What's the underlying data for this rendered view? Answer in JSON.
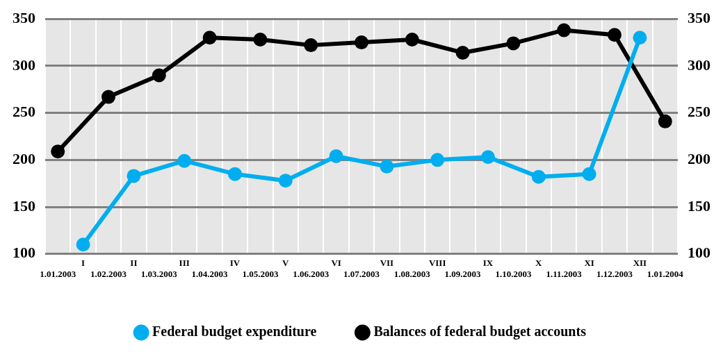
{
  "chart_data": {
    "type": "line",
    "categories": [
      "1.01.2003",
      "I",
      "1.02.2003",
      "II",
      "1.03.2003",
      "III",
      "1.04.2003",
      "IV",
      "1.05.2003",
      "V",
      "1.06.2003",
      "VI",
      "1.07.2003",
      "VII",
      "1.08.2003",
      "VIII",
      "1.09.2003",
      "IX",
      "1.10.2003",
      "X",
      "1.11.2003",
      "XI",
      "1.12.2003",
      "XII",
      "1.01.2004"
    ],
    "series": [
      {
        "name": "Federal budget expenditure",
        "color": "#00aeef",
        "x": [
          "I",
          "II",
          "III",
          "IV",
          "V",
          "VI",
          "VII",
          "VIII",
          "IX",
          "X",
          "XI",
          "XII"
        ],
        "values": [
          110,
          183,
          199,
          185,
          178,
          204,
          193,
          200,
          203,
          182,
          185,
          330
        ]
      },
      {
        "name": "Balances of federal budget accounts",
        "color": "#000000",
        "x": [
          "1.01.2003",
          "1.02.2003",
          "1.03.2003",
          "1.04.2003",
          "1.05.2003",
          "1.06.2003",
          "1.07.2003",
          "1.08.2003",
          "1.09.2003",
          "1.10.2003",
          "1.11.2003",
          "1.12.2003",
          "1.01.2004"
        ],
        "values": [
          209,
          267,
          290,
          330,
          328,
          322,
          325,
          328,
          314,
          324,
          338,
          333,
          241
        ]
      }
    ],
    "ylim": [
      100,
      350
    ],
    "yticks": [
      100,
      150,
      200,
      250,
      300,
      350
    ],
    "y2lim": [
      100,
      350
    ],
    "y2ticks": [
      100,
      150,
      200,
      250,
      300,
      350
    ],
    "grid": true,
    "legend": "bottom",
    "marker": "circle",
    "line_style": "solid"
  }
}
